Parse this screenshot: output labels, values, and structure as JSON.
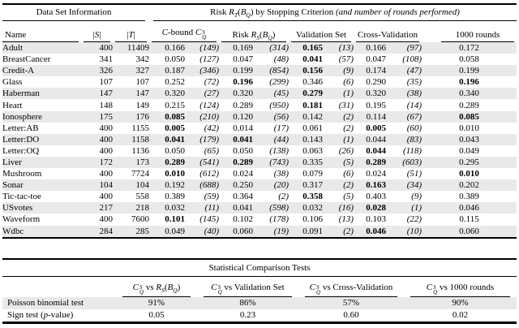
{
  "colors": {
    "stripe": "#e9e9e9",
    "rule": "#000000",
    "background": "#ffffff",
    "text": "#000000"
  },
  "table1": {
    "group_left": "Data Set Information",
    "group_right_html": "Risk <i>R</i><sub><i>T</i></sub>(<i>B</i><sub><i>Q</i></sub>) by Stopping Criterion <i>(and number of rounds performed)</i>",
    "headers": {
      "name": "Name",
      "s_html": "|<i>S</i>|",
      "t_html": "|<i>T</i>|",
      "cbound_html": "<i>C</i>-bound <i>C</i><span class='ss'><span>S</span><span>Q</span></span>",
      "risk_html": "Risk <i>R</i><sub><i>S</i></sub>(<i>B</i><sub><i>Q</i></sub>)",
      "validation": "Validation Set",
      "crossval": "Cross-Validation",
      "rounds1000": "1000 rounds"
    },
    "col_keys": [
      "cbound",
      "risk",
      "validation",
      "crossval"
    ],
    "rows": [
      {
        "name": "Adult",
        "s": "400",
        "t": "11409",
        "cols": [
          {
            "v": "0.166",
            "n": "149",
            "b": false
          },
          {
            "v": "0.169",
            "n": "314",
            "b": false
          },
          {
            "v": "0.165",
            "n": "13",
            "b": true
          },
          {
            "v": "0.166",
            "n": "97",
            "b": false
          }
        ],
        "final": {
          "v": "0.172",
          "b": false
        }
      },
      {
        "name": "BreastCancer",
        "s": "341",
        "t": "342",
        "cols": [
          {
            "v": "0.050",
            "n": "127",
            "b": false
          },
          {
            "v": "0.047",
            "n": "48",
            "b": false
          },
          {
            "v": "0.041",
            "n": "57",
            "b": true
          },
          {
            "v": "0.047",
            "n": "108",
            "b": false
          }
        ],
        "final": {
          "v": "0.058",
          "b": false
        }
      },
      {
        "name": "Credit-A",
        "s": "326",
        "t": "327",
        "cols": [
          {
            "v": "0.187",
            "n": "346",
            "b": false
          },
          {
            "v": "0.199",
            "n": "854",
            "b": false
          },
          {
            "v": "0.156",
            "n": "9",
            "b": true
          },
          {
            "v": "0.174",
            "n": "47",
            "b": false
          }
        ],
        "final": {
          "v": "0.199",
          "b": false
        }
      },
      {
        "name": "Glass",
        "s": "107",
        "t": "107",
        "cols": [
          {
            "v": "0.252",
            "n": "72",
            "b": false
          },
          {
            "v": "0.196",
            "n": "299",
            "b": true
          },
          {
            "v": "0.346",
            "n": "6",
            "b": false
          },
          {
            "v": "0.290",
            "n": "35",
            "b": false
          }
        ],
        "final": {
          "v": "0.196",
          "b": true
        }
      },
      {
        "name": "Haberman",
        "s": "147",
        "t": "147",
        "cols": [
          {
            "v": "0.320",
            "n": "27",
            "b": false
          },
          {
            "v": "0.320",
            "n": "45",
            "b": false
          },
          {
            "v": "0.279",
            "n": "1",
            "b": true
          },
          {
            "v": "0.320",
            "n": "38",
            "b": false
          }
        ],
        "final": {
          "v": "0.340",
          "b": false
        }
      },
      {
        "name": "Heart",
        "s": "148",
        "t": "149",
        "cols": [
          {
            "v": "0.215",
            "n": "124",
            "b": false
          },
          {
            "v": "0.289",
            "n": "950",
            "b": false
          },
          {
            "v": "0.181",
            "n": "31",
            "b": true
          },
          {
            "v": "0.195",
            "n": "14",
            "b": false
          }
        ],
        "final": {
          "v": "0.289",
          "b": false
        }
      },
      {
        "name": "Ionosphere",
        "s": "175",
        "t": "176",
        "cols": [
          {
            "v": "0.085",
            "n": "210",
            "b": true
          },
          {
            "v": "0.120",
            "n": "56",
            "b": false
          },
          {
            "v": "0.142",
            "n": "2",
            "b": false
          },
          {
            "v": "0.114",
            "n": "67",
            "b": false
          }
        ],
        "final": {
          "v": "0.085",
          "b": true
        }
      },
      {
        "name": "Letter:AB",
        "s": "400",
        "t": "1155",
        "cols": [
          {
            "v": "0.005",
            "n": "42",
            "b": true
          },
          {
            "v": "0.014",
            "n": "17",
            "b": false
          },
          {
            "v": "0.061",
            "n": "2",
            "b": false
          },
          {
            "v": "0.005",
            "n": "60",
            "b": true
          }
        ],
        "final": {
          "v": "0.010",
          "b": false
        }
      },
      {
        "name": "Letter:DO",
        "s": "400",
        "t": "1158",
        "cols": [
          {
            "v": "0.041",
            "n": "179",
            "b": true
          },
          {
            "v": "0.041",
            "n": "44",
            "b": true
          },
          {
            "v": "0.143",
            "n": "1",
            "b": false
          },
          {
            "v": "0.044",
            "n": "83",
            "b": false
          }
        ],
        "final": {
          "v": "0.043",
          "b": false
        }
      },
      {
        "name": "Letter:OQ",
        "s": "400",
        "t": "1136",
        "cols": [
          {
            "v": "0.050",
            "n": "65",
            "b": false
          },
          {
            "v": "0.050",
            "n": "138",
            "b": false
          },
          {
            "v": "0.063",
            "n": "26",
            "b": false
          },
          {
            "v": "0.044",
            "n": "118",
            "b": true
          }
        ],
        "final": {
          "v": "0.049",
          "b": false
        }
      },
      {
        "name": "Liver",
        "s": "172",
        "t": "173",
        "cols": [
          {
            "v": "0.289",
            "n": "541",
            "b": true
          },
          {
            "v": "0.289",
            "n": "743",
            "b": true
          },
          {
            "v": "0.335",
            "n": "5",
            "b": false
          },
          {
            "v": "0.289",
            "n": "603",
            "b": true
          }
        ],
        "final": {
          "v": "0.295",
          "b": false
        }
      },
      {
        "name": "Mushroom",
        "s": "400",
        "t": "7724",
        "cols": [
          {
            "v": "0.010",
            "n": "612",
            "b": true
          },
          {
            "v": "0.024",
            "n": "38",
            "b": false
          },
          {
            "v": "0.079",
            "n": "6",
            "b": false
          },
          {
            "v": "0.024",
            "n": "51",
            "b": false
          }
        ],
        "final": {
          "v": "0.010",
          "b": true
        }
      },
      {
        "name": "Sonar",
        "s": "104",
        "t": "104",
        "cols": [
          {
            "v": "0.192",
            "n": "688",
            "b": false
          },
          {
            "v": "0.250",
            "n": "20",
            "b": false
          },
          {
            "v": "0.317",
            "n": "2",
            "b": false
          },
          {
            "v": "0.163",
            "n": "34",
            "b": true
          }
        ],
        "final": {
          "v": "0.202",
          "b": false
        }
      },
      {
        "name": "Tic-tac-toe",
        "s": "400",
        "t": "558",
        "cols": [
          {
            "v": "0.389",
            "n": "59",
            "b": false
          },
          {
            "v": "0.364",
            "n": "2",
            "b": false
          },
          {
            "v": "0.358",
            "n": "5",
            "b": true
          },
          {
            "v": "0.403",
            "n": "9",
            "b": false
          }
        ],
        "final": {
          "v": "0.389",
          "b": false
        }
      },
      {
        "name": "USvotes",
        "s": "217",
        "t": "218",
        "cols": [
          {
            "v": "0.032",
            "n": "11",
            "b": false
          },
          {
            "v": "0.041",
            "n": "598",
            "b": false
          },
          {
            "v": "0.032",
            "n": "16",
            "b": false
          },
          {
            "v": "0.028",
            "n": "1",
            "b": true
          }
        ],
        "final": {
          "v": "0.046",
          "b": false
        }
      },
      {
        "name": "Waveform",
        "s": "400",
        "t": "7600",
        "cols": [
          {
            "v": "0.101",
            "n": "145",
            "b": true
          },
          {
            "v": "0.102",
            "n": "178",
            "b": false
          },
          {
            "v": "0.106",
            "n": "13",
            "b": false
          },
          {
            "v": "0.103",
            "n": "22",
            "b": false
          }
        ],
        "final": {
          "v": "0.115",
          "b": false
        }
      },
      {
        "name": "Wdbc",
        "s": "284",
        "t": "285",
        "cols": [
          {
            "v": "0.049",
            "n": "40",
            "b": false
          },
          {
            "v": "0.060",
            "n": "19",
            "b": false
          },
          {
            "v": "0.091",
            "n": "2",
            "b": false
          },
          {
            "v": "0.046",
            "n": "10",
            "b": true
          }
        ],
        "final": {
          "v": "0.060",
          "b": false
        }
      }
    ]
  },
  "table2": {
    "title": "Statistical Comparison Tests",
    "headers_html": [
      "<i>C</i><span class='ss'><span>S</span><span>Q</span></span> vs <i>R</i><sub><i>S</i></sub>(<i>B</i><sub><i>Q</i></sub>)",
      "<i>C</i><span class='ss'><span>S</span><span>Q</span></span> vs Validation Set",
      "<i>C</i><span class='ss'><span>S</span><span>Q</span></span> vs Cross-Validation",
      "<i>C</i><span class='ss'><span>S</span><span>Q</span></span> vs 1000 rounds"
    ],
    "rows": [
      {
        "label_html": "Poisson binomial test",
        "values": [
          "91%",
          "86%",
          "57%",
          "90%"
        ]
      },
      {
        "label_html": "Sign test (<i>p</i>-value)",
        "values": [
          "0.05",
          "0.23",
          "0.60",
          "0.02"
        ]
      }
    ]
  }
}
